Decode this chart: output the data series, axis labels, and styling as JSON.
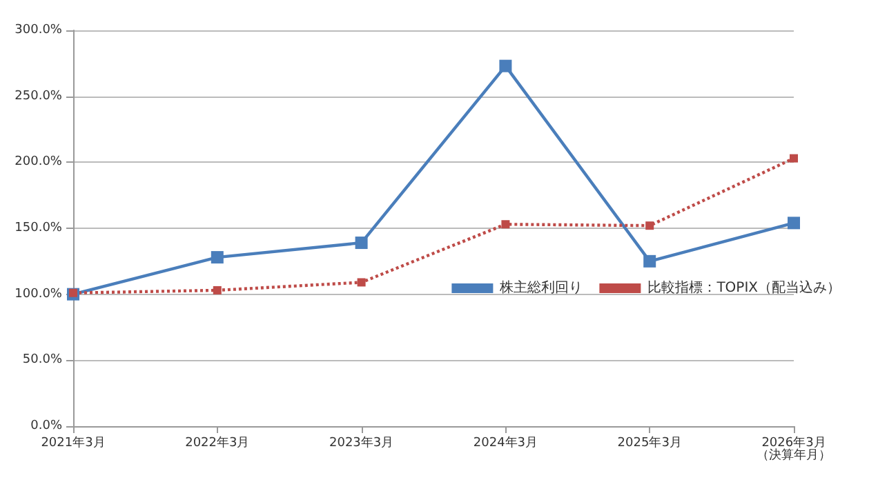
{
  "chart_data": {
    "type": "line",
    "xlabel": "（決算年月）",
    "categories": [
      "2021年3月",
      "2022年3月",
      "2023年3月",
      "2024年3月",
      "2025年3月",
      "2026年3月"
    ],
    "series": [
      {
        "name": "株主総利回り",
        "color": "#4a7ebb",
        "values": [
          100,
          128,
          139,
          273,
          125,
          154
        ],
        "line_style": "solid"
      },
      {
        "name": "比較指標：TOPIX（配当込み）",
        "color": "#be4b48",
        "values": [
          101,
          103,
          109,
          153,
          152,
          203
        ],
        "line_style": "dotted"
      }
    ],
    "ylim": [
      0,
      300
    ],
    "yticks": [
      {
        "value": 0,
        "label": "0.0%"
      },
      {
        "value": 50,
        "label": "50.0%"
      },
      {
        "value": 100,
        "label": "100.0%"
      },
      {
        "value": 150,
        "label": "150.0%"
      },
      {
        "value": 200,
        "label": "200.0%"
      },
      {
        "value": 250,
        "label": "250.0%"
      },
      {
        "value": 300,
        "label": "300.0%"
      }
    ],
    "grid": "y",
    "legend": "right",
    "marker": "square"
  }
}
